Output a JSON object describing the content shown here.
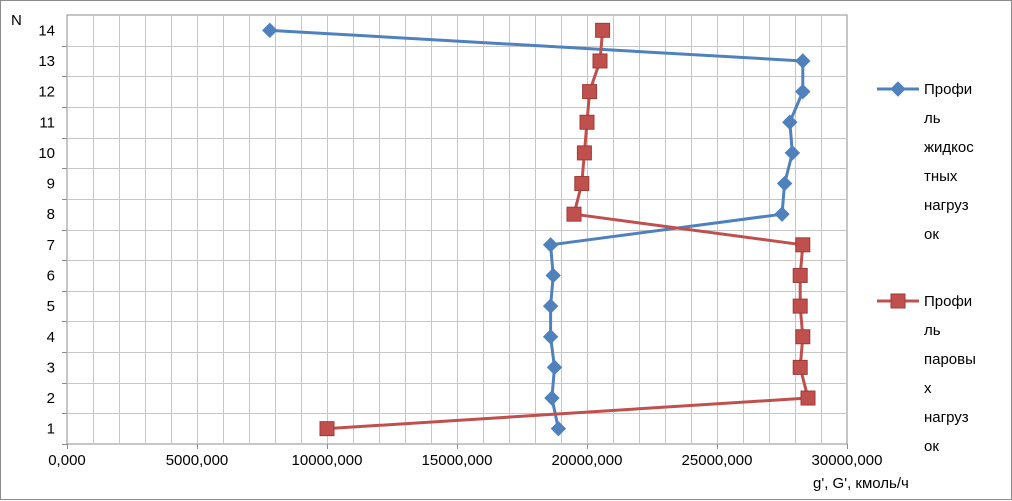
{
  "chart_data": {
    "type": "line",
    "ylabel": "N",
    "xlabel": "g', G', кмоль/ч",
    "xlim": [
      0,
      30000000
    ],
    "ylim": [
      1,
      14
    ],
    "x_tick_labels": [
      "0,000",
      "5000,000",
      "10000,000",
      "15000,000",
      "20000,000",
      "25000,000",
      "30000,000"
    ],
    "y_tick_labels": [
      "1",
      "2",
      "3",
      "4",
      "5",
      "6",
      "7",
      "8",
      "9",
      "10",
      "11",
      "12",
      "13",
      "14"
    ],
    "grid": true,
    "legend_position": "right",
    "series": [
      {
        "name_lines": [
          "Профи",
          "ль",
          "жидкос",
          "тных",
          "нагруз",
          "ок"
        ],
        "color": "#4f81bd",
        "marker": "diamond",
        "points": [
          {
            "g": 18900000,
            "n": 1
          },
          {
            "g": 18650000,
            "n": 2
          },
          {
            "g": 18750000,
            "n": 3
          },
          {
            "g": 18600000,
            "n": 4
          },
          {
            "g": 18600000,
            "n": 5
          },
          {
            "g": 18700000,
            "n": 6
          },
          {
            "g": 18600000,
            "n": 7
          },
          {
            "g": 27500000,
            "n": 8
          },
          {
            "g": 27600000,
            "n": 9
          },
          {
            "g": 27900000,
            "n": 10
          },
          {
            "g": 27800000,
            "n": 11
          },
          {
            "g": 28300000,
            "n": 12
          },
          {
            "g": 28300000,
            "n": 13
          },
          {
            "g": 7800000,
            "n": 14
          }
        ]
      },
      {
        "name_lines": [
          "Профи",
          "ль",
          "паровы",
          "х",
          "нагруз",
          "ок"
        ],
        "color": "#c0504d",
        "marker": "square",
        "points": [
          {
            "g": 10000000,
            "n": 1
          },
          {
            "g": 28500000,
            "n": 2
          },
          {
            "g": 28200000,
            "n": 3
          },
          {
            "g": 28300000,
            "n": 4
          },
          {
            "g": 28200000,
            "n": 5
          },
          {
            "g": 28200000,
            "n": 6
          },
          {
            "g": 28300000,
            "n": 7
          },
          {
            "g": 19500000,
            "n": 8
          },
          {
            "g": 19800000,
            "n": 9
          },
          {
            "g": 19900000,
            "n": 10
          },
          {
            "g": 20000000,
            "n": 11
          },
          {
            "g": 20100000,
            "n": 12
          },
          {
            "g": 20500000,
            "n": 13
          },
          {
            "g": 20600000,
            "n": 14
          }
        ]
      }
    ]
  }
}
